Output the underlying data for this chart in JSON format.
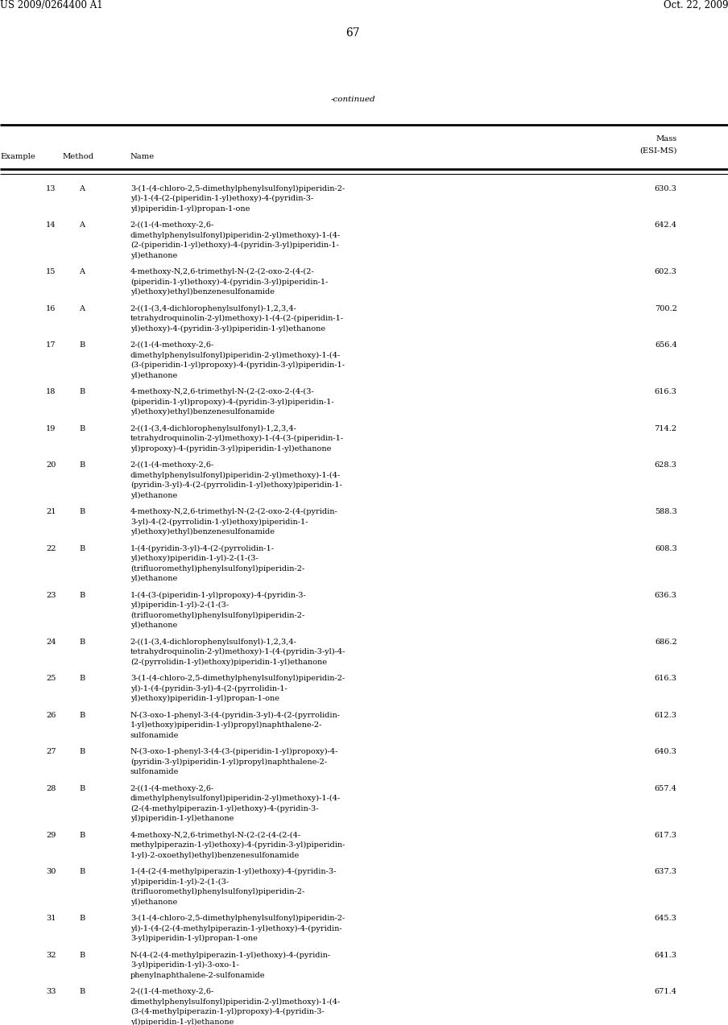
{
  "patent_number": "US 2009/0264400 A1",
  "date": "Oct. 22, 2009",
  "page_number": "67",
  "continued_label": "-continued",
  "rows": [
    {
      "ex": "13",
      "method": "A",
      "name": "3-(1-(4-chloro-2,5-dimethylphenylsulfonyl)piperidin-2-\nyl)-1-(4-(2-(piperidin-1-yl)ethoxy)-4-(pyridin-3-\nyl)piperidin-1-yl)propan-1-one",
      "mass": "630.3"
    },
    {
      "ex": "14",
      "method": "A",
      "name": "2-((1-(4-methoxy-2,6-\ndimethylphenylsulfonyl)piperidin-2-yl)methoxy)-1-(4-\n(2-(piperidin-1-yl)ethoxy)-4-(pyridin-3-yl)piperidin-1-\nyl)ethanone",
      "mass": "642.4"
    },
    {
      "ex": "15",
      "method": "A",
      "name": "4-methoxy-N,2,6-trimethyl-N-(2-(2-oxo-2-(4-(2-\n(piperidin-1-yl)ethoxy)-4-(pyridin-3-yl)piperidin-1-\nyl)ethoxy)ethyl)benzenesulfonamide",
      "mass": "602.3"
    },
    {
      "ex": "16",
      "method": "A",
      "name": "2-((1-(3,4-dichlorophenylsulfonyl)-1,2,3,4-\ntetrahydroquinolin-2-yl)methoxy)-1-(4-(2-(piperidin-1-\nyl)ethoxy)-4-(pyridin-3-yl)piperidin-1-yl)ethanone",
      "mass": "700.2"
    },
    {
      "ex": "17",
      "method": "B",
      "name": "2-((1-(4-methoxy-2,6-\ndimethylphenylsulfonyl)piperidin-2-yl)methoxy)-1-(4-\n(3-(piperidin-1-yl)propoxy)-4-(pyridin-3-yl)piperidin-1-\nyl)ethanone",
      "mass": "656.4"
    },
    {
      "ex": "18",
      "method": "B",
      "name": "4-methoxy-N,2,6-trimethyl-N-(2-(2-oxo-2-(4-(3-\n(piperidin-1-yl)propoxy)-4-(pyridin-3-yl)piperidin-1-\nyl)ethoxy)ethyl)benzenesulfonamide",
      "mass": "616.3"
    },
    {
      "ex": "19",
      "method": "B",
      "name": "2-((1-(3,4-dichlorophenylsulfonyl)-1,2,3,4-\ntetrahydroquinolin-2-yl)methoxy)-1-(4-(3-(piperidin-1-\nyl)propoxy)-4-(pyridin-3-yl)piperidin-1-yl)ethanone",
      "mass": "714.2"
    },
    {
      "ex": "20",
      "method": "B",
      "name": "2-((1-(4-methoxy-2,6-\ndimethylphenylsulfonyl)piperidin-2-yl)methoxy)-1-(4-\n(pyridin-3-yl)-4-(2-(pyrrolidin-1-yl)ethoxy)piperidin-1-\nyl)ethanone",
      "mass": "628.3"
    },
    {
      "ex": "21",
      "method": "B",
      "name": "4-methoxy-N,2,6-trimethyl-N-(2-(2-oxo-2-(4-(pyridin-\n3-yl)-4-(2-(pyrrolidin-1-yl)ethoxy)piperidin-1-\nyl)ethoxy)ethyl)benzenesulfonamide",
      "mass": "588.3"
    },
    {
      "ex": "22",
      "method": "B",
      "name": "1-(4-(pyridin-3-yl)-4-(2-(pyrrolidin-1-\nyl)ethoxy)piperidin-1-yl)-2-(1-(3-\n(trifluoromethyl)phenylsulfonyl)piperidin-2-\nyl)ethanone",
      "mass": "608.3"
    },
    {
      "ex": "23",
      "method": "B",
      "name": "1-(4-(3-(piperidin-1-yl)propoxy)-4-(pyridin-3-\nyl)piperidin-1-yl)-2-(1-(3-\n(trifluoromethyl)phenylsulfonyl)piperidin-2-\nyl)ethanone",
      "mass": "636.3"
    },
    {
      "ex": "24",
      "method": "B",
      "name": "2-((1-(3,4-dichlorophenylsulfonyl)-1,2,3,4-\ntetrahydroquinolin-2-yl)methoxy)-1-(4-(pyridin-3-yl)-4-\n(2-(pyrrolidin-1-yl)ethoxy)piperidin-1-yl)ethanone",
      "mass": "686.2"
    },
    {
      "ex": "25",
      "method": "B",
      "name": "3-(1-(4-chloro-2,5-dimethylphenylsulfonyl)piperidin-2-\nyl)-1-(4-(pyridin-3-yl)-4-(2-(pyrrolidin-1-\nyl)ethoxy)piperidin-1-yl)propan-1-one",
      "mass": "616.3"
    },
    {
      "ex": "26",
      "method": "B",
      "name": "N-(3-oxo-1-phenyl-3-(4-(pyridin-3-yl)-4-(2-(pyrrolidin-\n1-yl)ethoxy)piperidin-1-yl)propyl)naphthalene-2-\nsulfonamide",
      "mass": "612.3"
    },
    {
      "ex": "27",
      "method": "B",
      "name": "N-(3-oxo-1-phenyl-3-(4-(3-(piperidin-1-yl)propoxy)-4-\n(pyridin-3-yl)piperidin-1-yl)propyl)naphthalene-2-\nsulfonamide",
      "mass": "640.3"
    },
    {
      "ex": "28",
      "method": "B",
      "name": "2-((1-(4-methoxy-2,6-\ndimethylphenylsulfonyl)piperidin-2-yl)methoxy)-1-(4-\n(2-(4-methylpiperazin-1-yl)ethoxy)-4-(pyridin-3-\nyl)piperidin-1-yl)ethanone",
      "mass": "657.4"
    },
    {
      "ex": "29",
      "method": "B",
      "name": "4-methoxy-N,2,6-trimethyl-N-(2-(2-(4-(2-(4-\nmethylpiperazin-1-yl)ethoxy)-4-(pyridin-3-yl)piperidin-\n1-yl)-2-oxoethyl)ethyl)benzenesulfonamide",
      "mass": "617.3"
    },
    {
      "ex": "30",
      "method": "B",
      "name": "1-(4-(2-(4-methylpiperazin-1-yl)ethoxy)-4-(pyridin-3-\nyl)piperidin-1-yl)-2-(1-(3-\n(trifluoromethyl)phenylsulfonyl)piperidin-2-\nyl)ethanone",
      "mass": "637.3"
    },
    {
      "ex": "31",
      "method": "B",
      "name": "3-(1-(4-chloro-2,5-dimethylphenylsulfonyl)piperidin-2-\nyl)-1-(4-(2-(4-methylpiperazin-1-yl)ethoxy)-4-(pyridin-\n3-yl)piperidin-1-yl)propan-1-one",
      "mass": "645.3"
    },
    {
      "ex": "32",
      "method": "B",
      "name": "N-(4-(2-(4-methylpiperazin-1-yl)ethoxy)-4-(pyridin-\n3-yl)piperidin-1-yl)-3-oxo-1-\nphenylnaphthalene-2-sulfonamide",
      "mass": "641.3"
    },
    {
      "ex": "33",
      "method": "B",
      "name": "2-((1-(4-methoxy-2,6-\ndimethylphenylsulfonyl)piperidin-2-yl)methoxy)-1-(4-\n(3-(4-methylpiperazin-1-yl)propoxy)-4-(pyridin-3-\nyl)piperidin-1-yl)ethanone",
      "mass": "671.4"
    }
  ],
  "bg_color": "#ffffff",
  "text_color": "#000000",
  "body_fontsize": 7.0,
  "header_fontsize": 7.2,
  "patent_fontsize": 8.5,
  "page_fontsize": 10.0
}
